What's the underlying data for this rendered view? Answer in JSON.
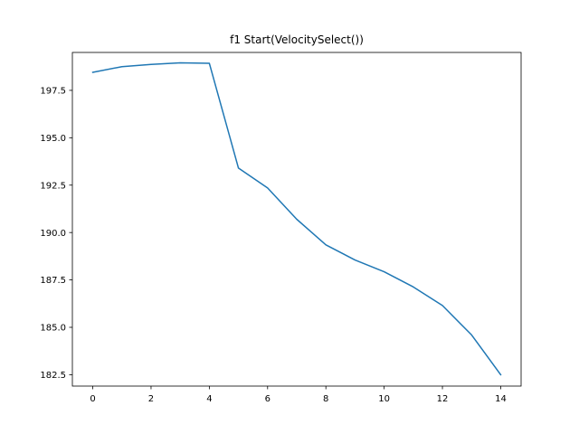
{
  "chart_data": {
    "type": "line",
    "title": "f1 Start(VelocitySelect())",
    "xlabel": "",
    "ylabel": "",
    "xlim": [
      -0.7,
      14.7
    ],
    "ylim": [
      181.9,
      199.5
    ],
    "xticks": [
      0,
      2,
      4,
      6,
      8,
      10,
      12,
      14
    ],
    "xtick_labels": [
      "0",
      "2",
      "4",
      "6",
      "8",
      "10",
      "12",
      "14"
    ],
    "yticks": [
      182.5,
      185.0,
      187.5,
      190.0,
      192.5,
      195.0,
      197.5
    ],
    "ytick_labels": [
      "182.5",
      "185.0",
      "187.5",
      "190.0",
      "192.5",
      "195.0",
      "197.5"
    ],
    "grid": false,
    "series": [
      {
        "color": "#1f77b4",
        "x": [
          0,
          1,
          2,
          3,
          4,
          5,
          6,
          7,
          8,
          9,
          10,
          11,
          12,
          13,
          14
        ],
        "y": [
          198.45,
          198.75,
          198.87,
          198.95,
          198.93,
          193.4,
          192.35,
          190.7,
          189.35,
          188.55,
          187.93,
          187.13,
          186.15,
          184.6,
          182.5
        ]
      }
    ]
  }
}
